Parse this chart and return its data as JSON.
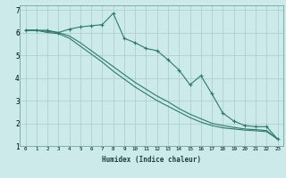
{
  "xlabel": "Humidex (Indice chaleur)",
  "ylabel": "",
  "background_color": "#cceaea",
  "grid_color": "#b0d0d0",
  "line_color": "#2a7a6a",
  "x_values": [
    0,
    1,
    2,
    3,
    4,
    5,
    6,
    7,
    8,
    9,
    10,
    11,
    12,
    13,
    14,
    15,
    16,
    17,
    18,
    19,
    20,
    21,
    22,
    23
  ],
  "series1": [
    6.1,
    6.1,
    6.1,
    6.0,
    6.15,
    6.25,
    6.3,
    6.35,
    6.85,
    5.75,
    5.55,
    5.3,
    5.2,
    4.8,
    4.35,
    3.7,
    4.1,
    3.3,
    2.45,
    2.1,
    1.9,
    1.85,
    1.85,
    1.3
  ],
  "series2": [
    6.1,
    6.1,
    6.05,
    6.0,
    5.85,
    5.55,
    5.2,
    4.85,
    4.5,
    4.15,
    3.8,
    3.5,
    3.2,
    2.95,
    2.65,
    2.4,
    2.2,
    2.0,
    1.9,
    1.82,
    1.75,
    1.72,
    1.68,
    1.3
  ],
  "series3": [
    6.1,
    6.1,
    6.0,
    5.95,
    5.75,
    5.4,
    5.05,
    4.7,
    4.3,
    3.95,
    3.6,
    3.3,
    3.0,
    2.75,
    2.5,
    2.25,
    2.05,
    1.9,
    1.8,
    1.75,
    1.7,
    1.67,
    1.63,
    1.3
  ],
  "ylim": [
    1,
    7.2
  ],
  "xlim": [
    -0.5,
    23.5
  ],
  "yticks": [
    1,
    2,
    3,
    4,
    5,
    6,
    7
  ],
  "xticks": [
    0,
    1,
    2,
    3,
    4,
    5,
    6,
    7,
    8,
    9,
    10,
    11,
    12,
    13,
    14,
    15,
    16,
    17,
    18,
    19,
    20,
    21,
    22,
    23
  ]
}
